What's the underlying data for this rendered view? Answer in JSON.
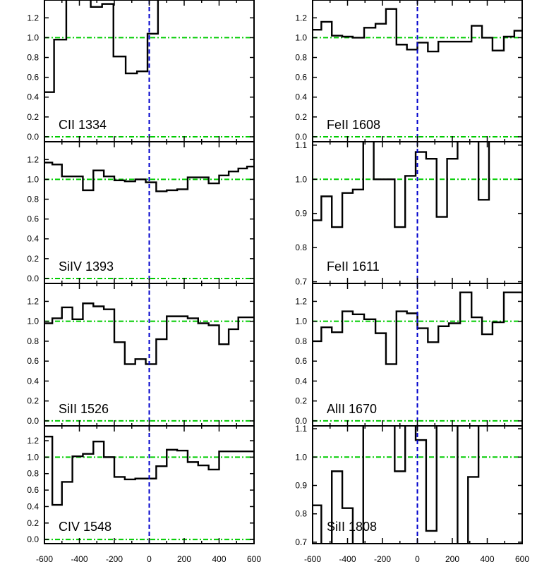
{
  "colors": {
    "data": "#000000",
    "zero_velocity_line": "#0000cc",
    "continuum_lines": "#00cc00"
  },
  "chart_data": {
    "type": "line",
    "layout": "4 rows x 2 columns of stacked velocity panels, step-style histograms",
    "x_tick_labels": [
      "-600",
      "-400",
      "-200",
      "0",
      "200",
      "400",
      "600"
    ],
    "xlim": [
      -600,
      600
    ],
    "vertical_line_x": 0,
    "panels": [
      {
        "label": "CII 1334",
        "ylim": [
          -0.05,
          1.38
        ],
        "yticks": [
          0.0,
          0.2,
          0.4,
          0.6,
          0.8,
          1.0,
          1.2
        ],
        "ytick_labels": [
          "0.0",
          "0.2",
          "0.4",
          "0.6",
          "0.8",
          "1.0",
          "1.2"
        ],
        "hlines": [
          0.0,
          1.0
        ],
        "x": [
          -580,
          -510,
          -440,
          -370,
          -300,
          -240,
          -170,
          -100,
          -40,
          20,
          80
        ],
        "y": [
          0.45,
          0.98,
          1.4,
          1.45,
          1.31,
          1.34,
          0.81,
          0.64,
          0.66,
          1.04,
          1.45
        ]
      },
      {
        "label": "FeII 1608",
        "ylim": [
          -0.05,
          1.38
        ],
        "yticks": [
          0.0,
          0.2,
          0.4,
          0.6,
          0.8,
          1.0,
          1.2
        ],
        "ytick_labels": [
          "0.0",
          "0.2",
          "0.4",
          "0.6",
          "0.8",
          "1.0",
          "1.2"
        ],
        "hlines": [
          0.0,
          1.0
        ],
        "x": [
          -580,
          -520,
          -460,
          -400,
          -340,
          -270,
          -210,
          -150,
          -90,
          -30,
          30,
          90,
          150,
          210,
          280,
          340,
          400,
          460,
          530,
          580
        ],
        "y": [
          1.08,
          1.16,
          1.02,
          1.01,
          1.0,
          1.1,
          1.14,
          1.29,
          0.93,
          0.88,
          0.95,
          0.86,
          0.96,
          0.96,
          0.96,
          1.12,
          1.0,
          0.87,
          1.01,
          1.07
        ]
      },
      {
        "label": "SiIV 1393",
        "ylim": [
          -0.05,
          1.38
        ],
        "yticks": [
          0.0,
          0.2,
          0.4,
          0.6,
          0.8,
          1.0,
          1.2
        ],
        "ytick_labels": [
          "0.0",
          "0.2",
          "0.4",
          "0.6",
          "0.8",
          "1.0",
          "1.2"
        ],
        "hlines": [
          0.0,
          1.0
        ],
        "x": [
          -580,
          -530,
          -470,
          -410,
          -350,
          -290,
          -230,
          -170,
          -110,
          -50,
          10,
          70,
          130,
          190,
          250,
          310,
          370,
          430,
          480,
          540,
          580
        ],
        "y": [
          1.17,
          1.15,
          1.03,
          1.03,
          0.89,
          1.09,
          1.03,
          0.99,
          0.98,
          1.0,
          0.97,
          0.88,
          0.89,
          0.9,
          1.02,
          1.02,
          0.96,
          1.04,
          1.08,
          1.11,
          1.13
        ]
      },
      {
        "label": "FeII 1611",
        "ylim": [
          0.695,
          1.11
        ],
        "yticks": [
          0.7,
          0.8,
          0.9,
          1.0,
          1.1
        ],
        "ytick_labels": [
          "0.7",
          "0.8",
          "0.9",
          "1.0",
          "1.1"
        ],
        "hlines": [
          1.0
        ],
        "x": [
          -580,
          -520,
          -460,
          -400,
          -340,
          -280,
          -220,
          -160,
          -100,
          -40,
          20,
          80,
          140,
          200,
          260,
          320,
          380,
          440,
          500,
          560
        ],
        "y": [
          0.88,
          0.95,
          0.86,
          0.96,
          0.97,
          1.13,
          1.0,
          1.0,
          0.86,
          1.01,
          1.08,
          1.06,
          0.89,
          1.06,
          1.12,
          1.12,
          0.94,
          1.12,
          1.12,
          1.12
        ]
      },
      {
        "label": "SiII 1526",
        "ylim": [
          -0.05,
          1.38
        ],
        "yticks": [
          0.0,
          0.2,
          0.4,
          0.6,
          0.8,
          1.0,
          1.2
        ],
        "ytick_labels": [
          "0.0",
          "0.2",
          "0.4",
          "0.6",
          "0.8",
          "1.0",
          "1.2"
        ],
        "hlines": [
          0.0,
          1.0
        ],
        "x": [
          -580,
          -530,
          -470,
          -410,
          -350,
          -290,
          -230,
          -170,
          -110,
          -50,
          10,
          70,
          130,
          190,
          250,
          310,
          370,
          430,
          480,
          540,
          580
        ],
        "y": [
          0.98,
          1.03,
          1.14,
          1.02,
          1.18,
          1.15,
          1.12,
          0.79,
          0.57,
          0.62,
          0.57,
          0.82,
          1.05,
          1.05,
          1.03,
          0.98,
          0.96,
          0.77,
          0.92,
          1.04,
          1.04
        ]
      },
      {
        "label": "AlII 1670",
        "ylim": [
          -0.05,
          1.38
        ],
        "yticks": [
          0.0,
          0.2,
          0.4,
          0.6,
          0.8,
          1.0,
          1.2
        ],
        "ytick_labels": [
          "0.0",
          "0.2",
          "0.4",
          "0.6",
          "0.8",
          "1.0",
          "1.2"
        ],
        "hlines": [
          0.0,
          1.0
        ],
        "x": [
          -580,
          -520,
          -460,
          -400,
          -340,
          -270,
          -210,
          -150,
          -90,
          -30,
          30,
          90,
          150,
          210,
          280,
          340,
          400,
          460,
          530,
          580
        ],
        "y": [
          0.8,
          0.94,
          0.89,
          1.1,
          1.07,
          1.02,
          0.88,
          0.57,
          1.1,
          1.08,
          0.93,
          0.79,
          0.95,
          0.98,
          1.29,
          1.04,
          0.87,
          0.99,
          1.29,
          1.29
        ]
      },
      {
        "label": "CIV 1548",
        "ylim": [
          -0.05,
          1.38
        ],
        "yticks": [
          0.0,
          0.2,
          0.4,
          0.6,
          0.8,
          1.0,
          1.2
        ],
        "ytick_labels": [
          "0.0",
          "0.2",
          "0.4",
          "0.6",
          "0.8",
          "1.0",
          "1.2"
        ],
        "hlines": [
          0.0,
          1.0
        ],
        "x": [
          -580,
          -530,
          -470,
          -410,
          -350,
          -290,
          -230,
          -170,
          -110,
          -50,
          10,
          70,
          130,
          190,
          250,
          310,
          370,
          430,
          480,
          540,
          580
        ],
        "y": [
          1.25,
          0.42,
          0.7,
          1.01,
          1.04,
          1.19,
          1.0,
          0.76,
          0.73,
          0.74,
          0.74,
          0.89,
          1.09,
          1.08,
          0.94,
          0.9,
          0.85,
          1.07,
          1.07,
          1.07,
          1.07
        ]
      },
      {
        "label": "SiII 1808",
        "ylim": [
          0.695,
          1.11
        ],
        "yticks": [
          0.7,
          0.8,
          0.9,
          1.0,
          1.1
        ],
        "ytick_labels": [
          "0.7",
          "0.8",
          "0.9",
          "1.0",
          "1.1"
        ],
        "hlines": [
          1.0
        ],
        "x": [
          -580,
          -520,
          -460,
          -400,
          -340,
          -280,
          -220,
          -160,
          -100,
          -40,
          20,
          80,
          140,
          200,
          260,
          320,
          380,
          440,
          500,
          560
        ],
        "y": [
          0.83,
          0.6,
          0.95,
          0.82,
          0.69,
          1.13,
          1.13,
          1.13,
          0.95,
          1.13,
          1.06,
          0.74,
          1.13,
          1.13,
          0.6,
          0.93,
          1.13,
          1.13,
          1.13,
          1.13
        ]
      }
    ]
  }
}
